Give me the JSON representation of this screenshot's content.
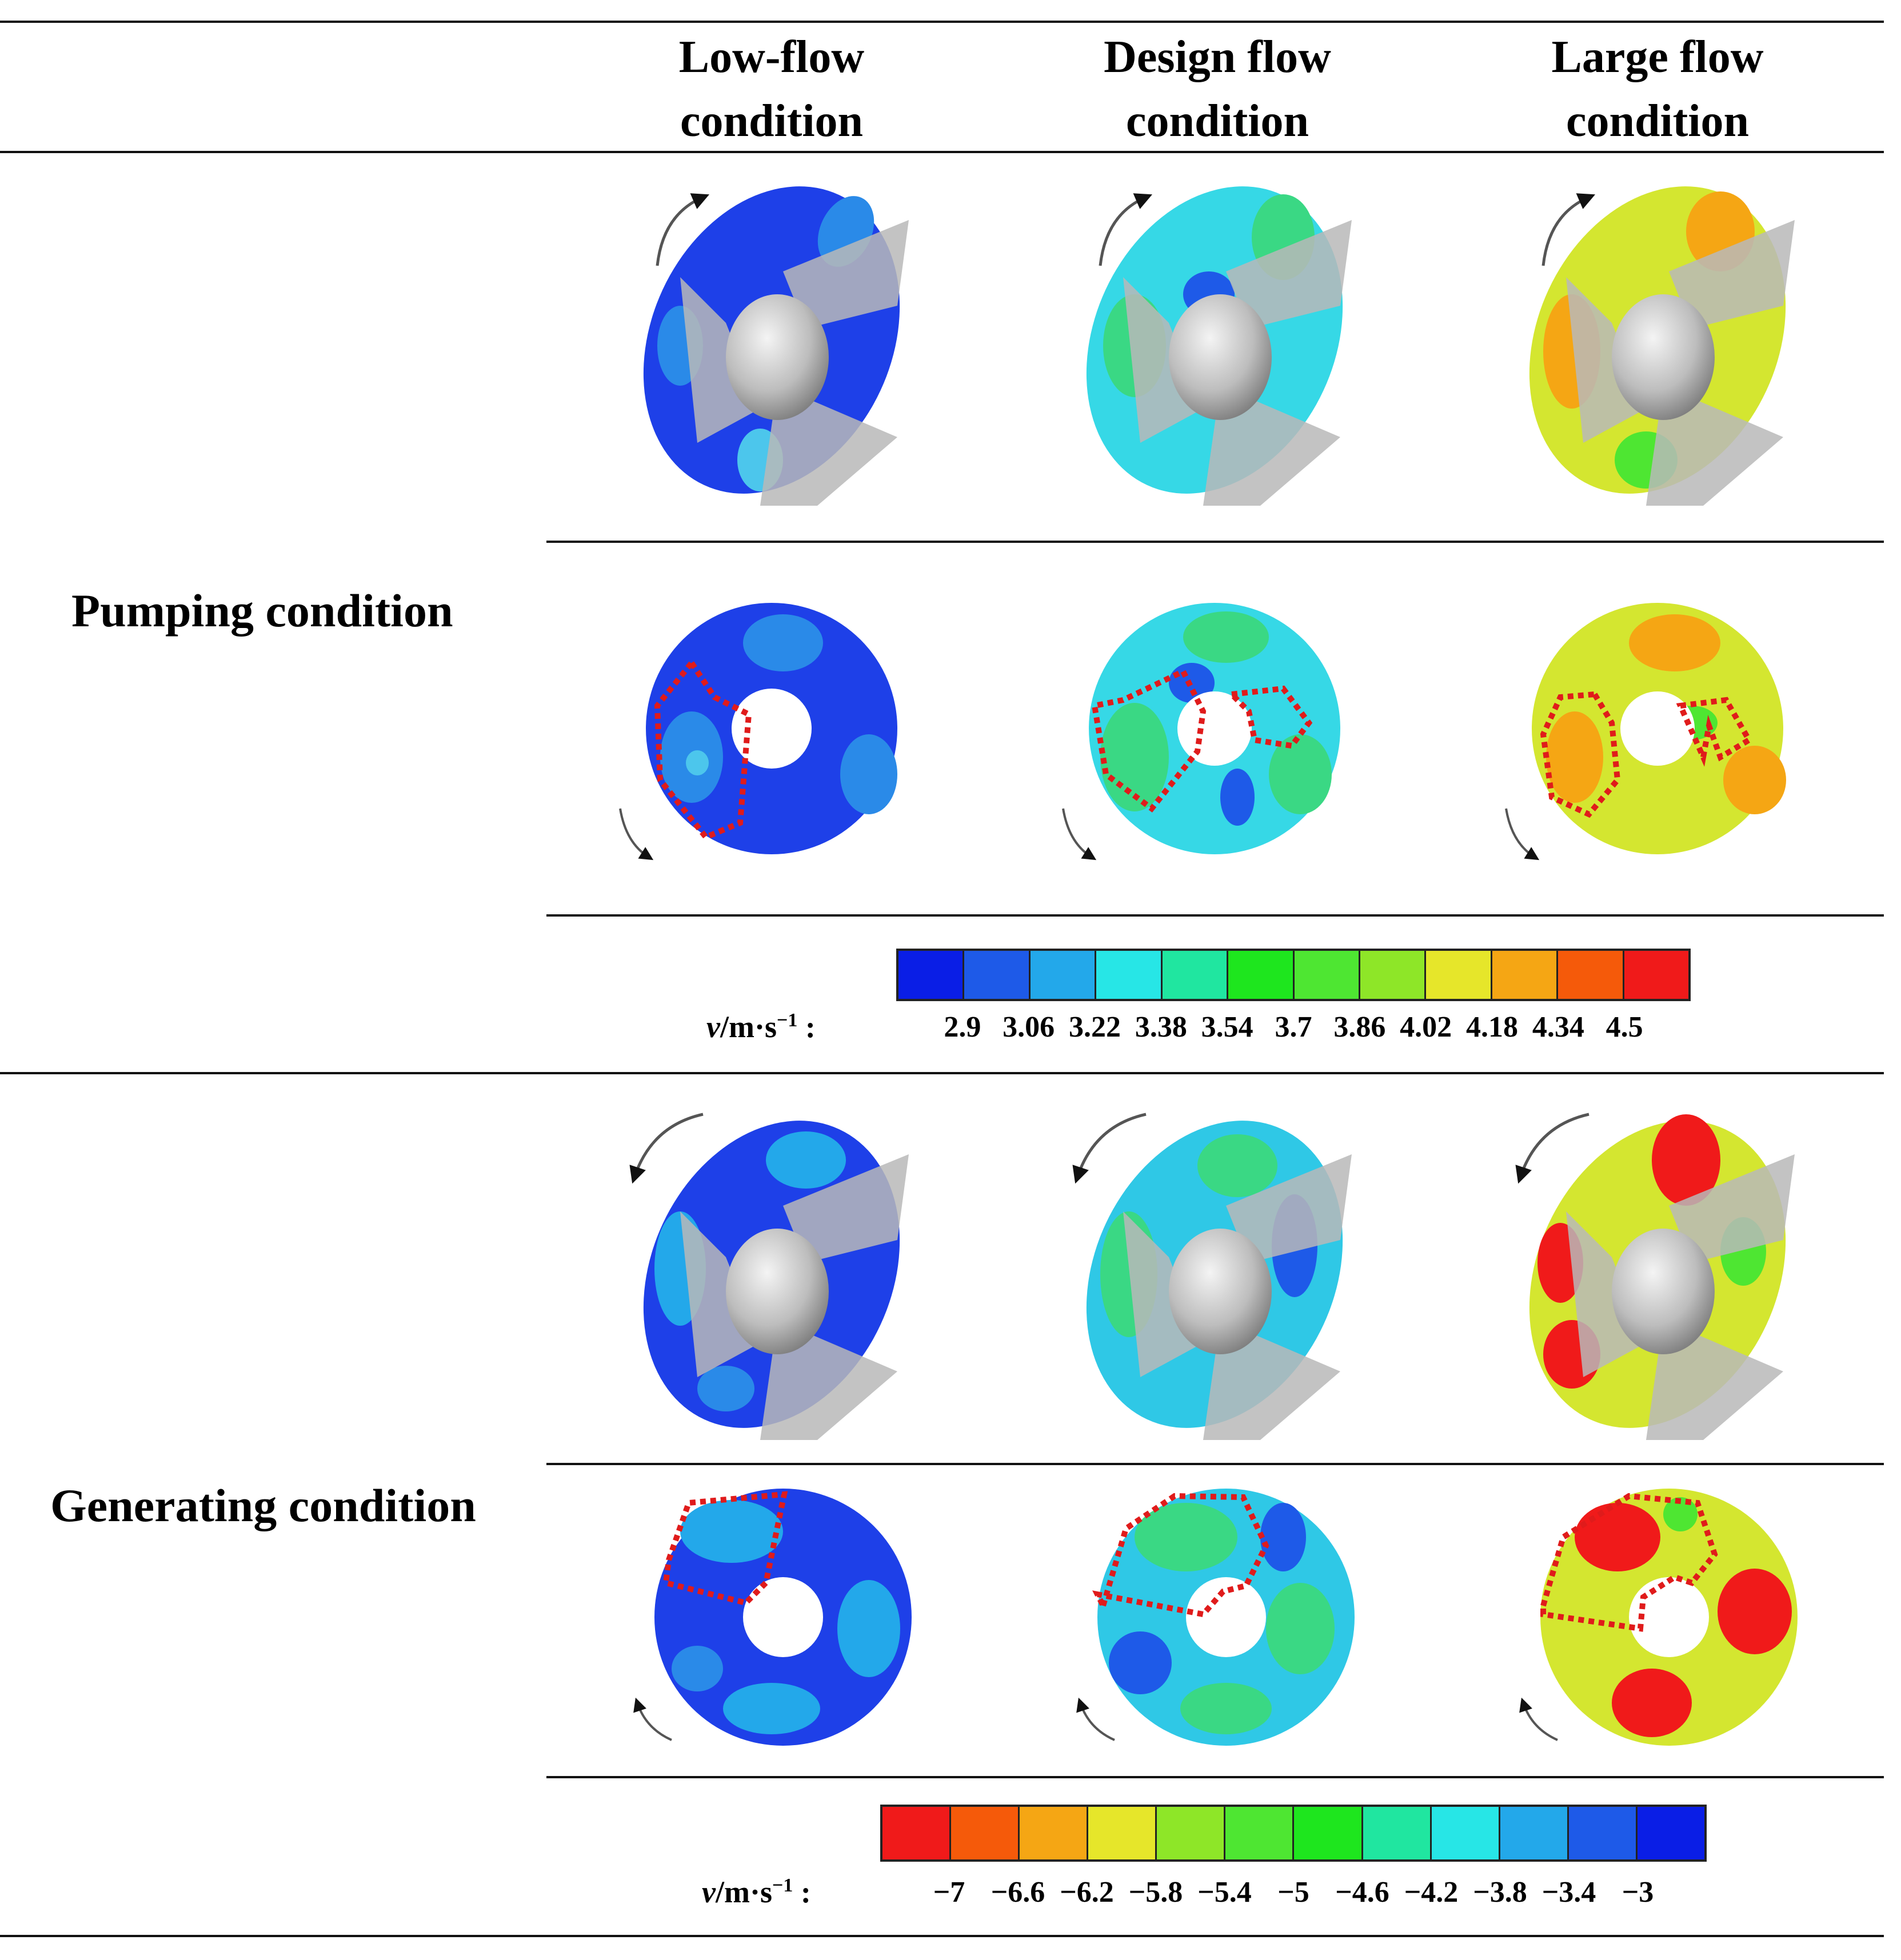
{
  "columns": {
    "low": {
      "line1": "Low-flow",
      "line2": "condition"
    },
    "design": {
      "line1": "Design flow",
      "line2": "condition"
    },
    "large": {
      "line1": "Large flow",
      "line2": "condition"
    }
  },
  "rows": {
    "pumping": "Pumping condition",
    "generating": "Generating condition"
  },
  "pumping_scale": {
    "unit_var": "v",
    "unit_rest": "/m·s",
    "unit_exp": "−1",
    "unit_colon": " :",
    "colors": [
      "#0a1ee6",
      "#1e5ae8",
      "#23a8ea",
      "#27e6e6",
      "#20e6a0",
      "#1ee61e",
      "#4ee632",
      "#8ee628",
      "#e6e62a",
      "#f5a614",
      "#f55a0a",
      "#f01a1a"
    ],
    "ticks": [
      "2.9",
      "3.06",
      "3.22",
      "3.38",
      "3.54",
      "3.7",
      "3.86",
      "4.02",
      "4.18",
      "4.34",
      "4.5"
    ]
  },
  "generating_scale": {
    "unit_var": "v",
    "unit_rest": "/m·s",
    "unit_exp": "−1",
    "unit_colon": " :",
    "colors": [
      "#f01a1a",
      "#f55a0a",
      "#f5a614",
      "#e6e62a",
      "#8ee628",
      "#4ee632",
      "#1ee61e",
      "#20e6a0",
      "#27e6e6",
      "#23a8ea",
      "#1e5ae8",
      "#0a1ee6"
    ],
    "ticks": [
      "−7",
      "−6.6",
      "−6.2",
      "−5.8",
      "−5.4",
      "−5",
      "−4.6",
      "−4.2",
      "−3.8",
      "−3.4",
      "−3"
    ]
  },
  "panels": {
    "pump_low": {
      "base": "#1e40e8",
      "spots": [
        "#2a8ae8",
        "#4cc6ec"
      ]
    },
    "pump_design": {
      "base": "#36d8e6",
      "spots": [
        "#3ad884",
        "#1e5ae8"
      ]
    },
    "pump_large": {
      "base": "#d4e630",
      "spots": [
        "#f5a614",
        "#4ee632"
      ]
    },
    "gen_low": {
      "base": "#1e40e8",
      "spots": [
        "#23a8ea",
        "#2a8ae8"
      ]
    },
    "gen_design": {
      "base": "#2fc8e6",
      "spots": [
        "#3ad884",
        "#1e5ae8"
      ]
    },
    "gen_large": {
      "base": "#d4e630",
      "spots": [
        "#f01a1a",
        "#4ee632"
      ]
    }
  }
}
